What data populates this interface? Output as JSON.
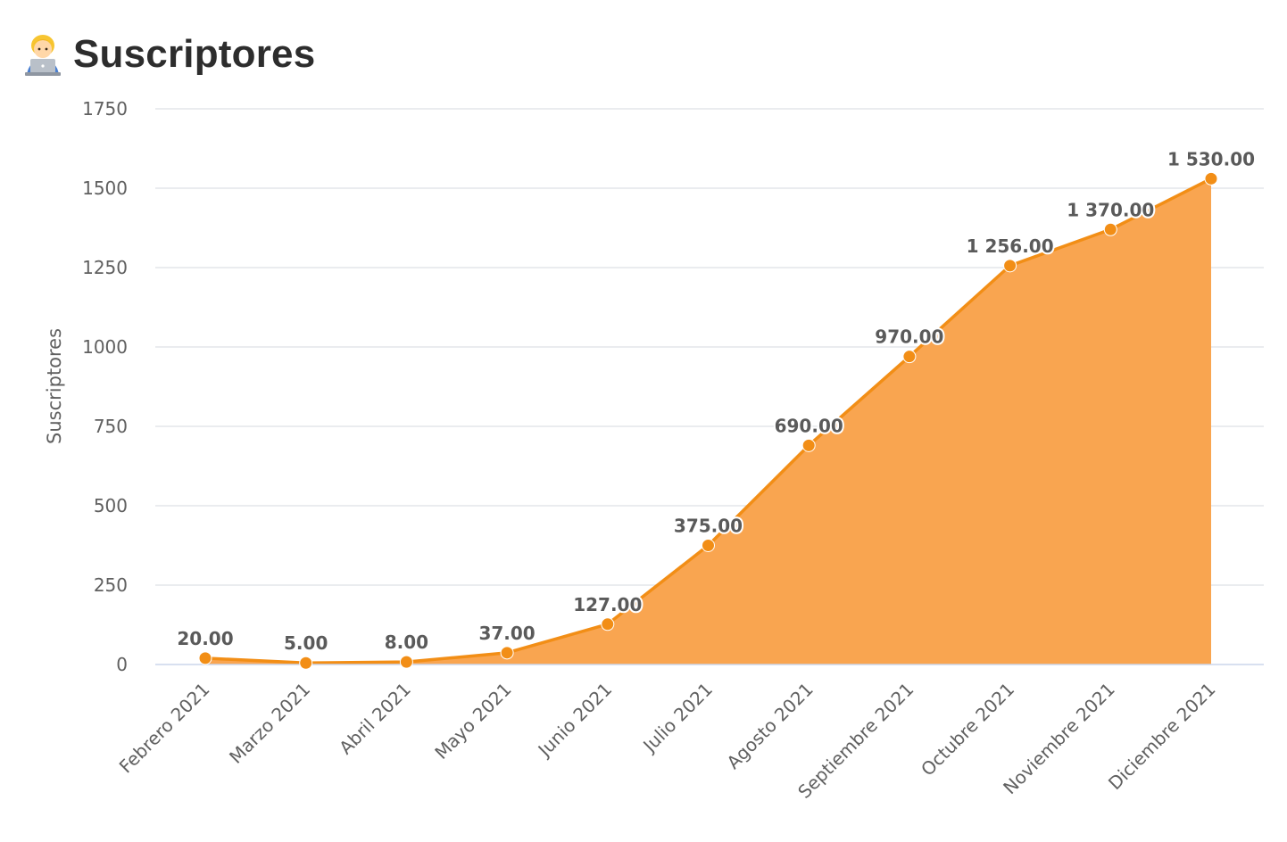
{
  "header": {
    "title": "Suscriptores",
    "icon": "person-with-laptop-icon"
  },
  "colors": {
    "line": "#f28e16",
    "area": "#f9a550",
    "grid": "#e4e6ea",
    "text": "#606060"
  },
  "chart_data": {
    "type": "area",
    "title": "Suscriptores",
    "xlabel": "",
    "ylabel": "Suscriptores",
    "ylim": [
      0,
      1750
    ],
    "yticks": [
      0,
      250,
      500,
      750,
      1000,
      1250,
      1500,
      1750
    ],
    "grid": true,
    "categories": [
      "Febrero 2021",
      "Marzo 2021",
      "Abril 2021",
      "Mayo 2021",
      "Junio 2021",
      "Julio 2021",
      "Agosto 2021",
      "Septiembre 2021",
      "Octubre 2021",
      "Noviembre 2021",
      "Diciembre 2021"
    ],
    "values": [
      20,
      5,
      8,
      37,
      127,
      375,
      690,
      970,
      1256,
      1370,
      1530
    ],
    "data_labels": [
      "20.00",
      "5.00",
      "8.00",
      "37.00",
      "127.00",
      "375.00",
      "690.00",
      "970.00",
      "1 256.00",
      "1 370.00",
      "1 530.00"
    ]
  }
}
